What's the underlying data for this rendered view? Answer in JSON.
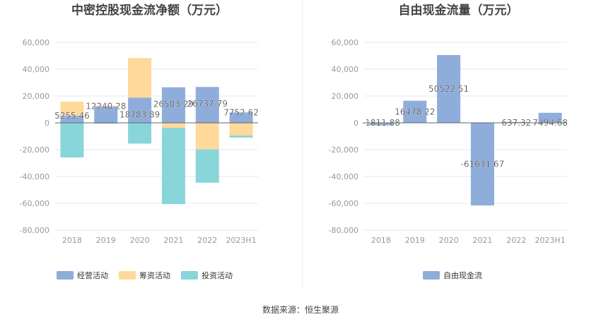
{
  "chart_data": [
    {
      "type": "bar",
      "stacked": true,
      "title": "中密控股现金流净额（万元）",
      "categories": [
        "2018",
        "2019",
        "2020",
        "2021",
        "2022",
        "2023H1"
      ],
      "series": [
        {
          "name": "经营活动",
          "color": "#8eaddb",
          "values": [
            5255.46,
            12240.28,
            18783.89,
            26503.29,
            26737.79,
            7752.62
          ]
        },
        {
          "name": "筹资活动",
          "color": "#ffd99a",
          "values": [
            10500,
            500,
            29500,
            -3800,
            -19800,
            -9500
          ]
        },
        {
          "name": "投资活动",
          "color": "#88d5da",
          "values": [
            -25800,
            -600,
            -15500,
            -56800,
            -24800,
            -1500
          ]
        }
      ],
      "data_labels": [
        "5255.46",
        "12240.28",
        "18783.89",
        "26503.29",
        "26737.79",
        "7752.62"
      ],
      "yticks": [
        "60,000",
        "40,000",
        "20,000",
        "0",
        "-20,000",
        "-40,000",
        "-60,000",
        "-80,000"
      ],
      "ylim": [
        -80000,
        60000
      ],
      "grid": true,
      "legend": "bottom"
    },
    {
      "type": "bar",
      "title": "自由现金流量（万元）",
      "categories": [
        "2018",
        "2019",
        "2020",
        "2021",
        "2022",
        "2023H1"
      ],
      "series": [
        {
          "name": "自由现金流",
          "color": "#8eaddb",
          "values": [
            -1811.88,
            16478.22,
            50522.51,
            -61631.67,
            637.32,
            7494.68
          ]
        }
      ],
      "data_labels": [
        "-1811.88",
        "16478.22",
        "50522.51",
        "-61631.67",
        "637.32",
        "7494.68"
      ],
      "yticks": [
        "60,000",
        "40,000",
        "20,000",
        "0",
        "-20,000",
        "-40,000",
        "-60,000",
        "-80,000"
      ],
      "ylim": [
        -80000,
        60000
      ],
      "grid": true,
      "legend": "bottom"
    }
  ],
  "source": "数据来源：恒生聚源"
}
